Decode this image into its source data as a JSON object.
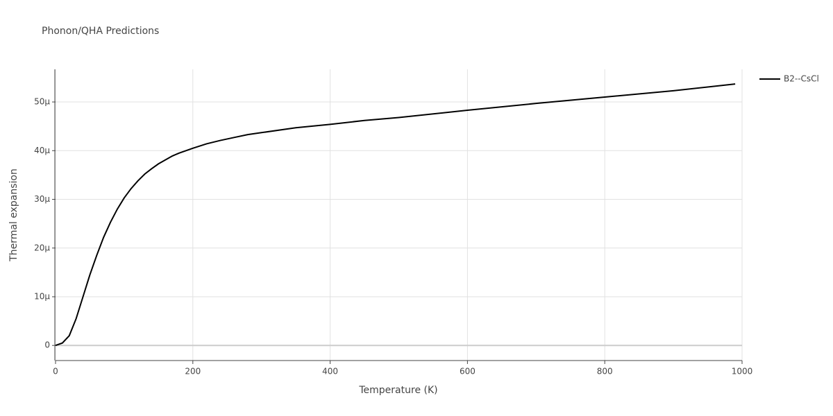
{
  "chart_data": {
    "type": "line",
    "title": "Phonon/QHA Predictions",
    "x_label": "Temperature (K)",
    "y_label": "Thermal expansion",
    "x": [
      0,
      10,
      20,
      30,
      40,
      50,
      60,
      70,
      80,
      90,
      100,
      110,
      120,
      130,
      140,
      150,
      160,
      170,
      180,
      200,
      220,
      240,
      260,
      280,
      300,
      350,
      400,
      450,
      500,
      600,
      700,
      800,
      900,
      990
    ],
    "series": [
      {
        "name": "B2--CsCl",
        "color": "#000000",
        "values": [
          0,
          5e-07,
          2e-06,
          5.5e-06,
          1e-05,
          1.45e-05,
          1.85e-05,
          2.22e-05,
          2.53e-05,
          2.8e-05,
          3.03e-05,
          3.22e-05,
          3.38e-05,
          3.52e-05,
          3.63e-05,
          3.73e-05,
          3.81e-05,
          3.89e-05,
          3.95e-05,
          4.05e-05,
          4.14e-05,
          4.21e-05,
          4.27e-05,
          4.33e-05,
          4.37e-05,
          4.47e-05,
          4.54e-05,
          4.62e-05,
          4.68e-05,
          4.83e-05,
          4.97e-05,
          5.1e-05,
          5.23e-05,
          5.37e-05
        ]
      }
    ],
    "xlim": [
      0,
      1000
    ],
    "xticks": [
      0,
      200,
      400,
      600,
      800,
      1000
    ],
    "ylim": [
      -3.1e-06,
      5.67e-05
    ],
    "yticks": [
      0,
      {
        "value": 1e-05,
        "label": "10μ"
      },
      {
        "value": 2e-05,
        "label": "20μ"
      },
      {
        "value": 3e-05,
        "label": "30μ"
      },
      {
        "value": 4e-05,
        "label": "40μ"
      },
      {
        "value": 5e-05,
        "label": "50μ"
      }
    ],
    "grid": true,
    "legend": "right"
  }
}
